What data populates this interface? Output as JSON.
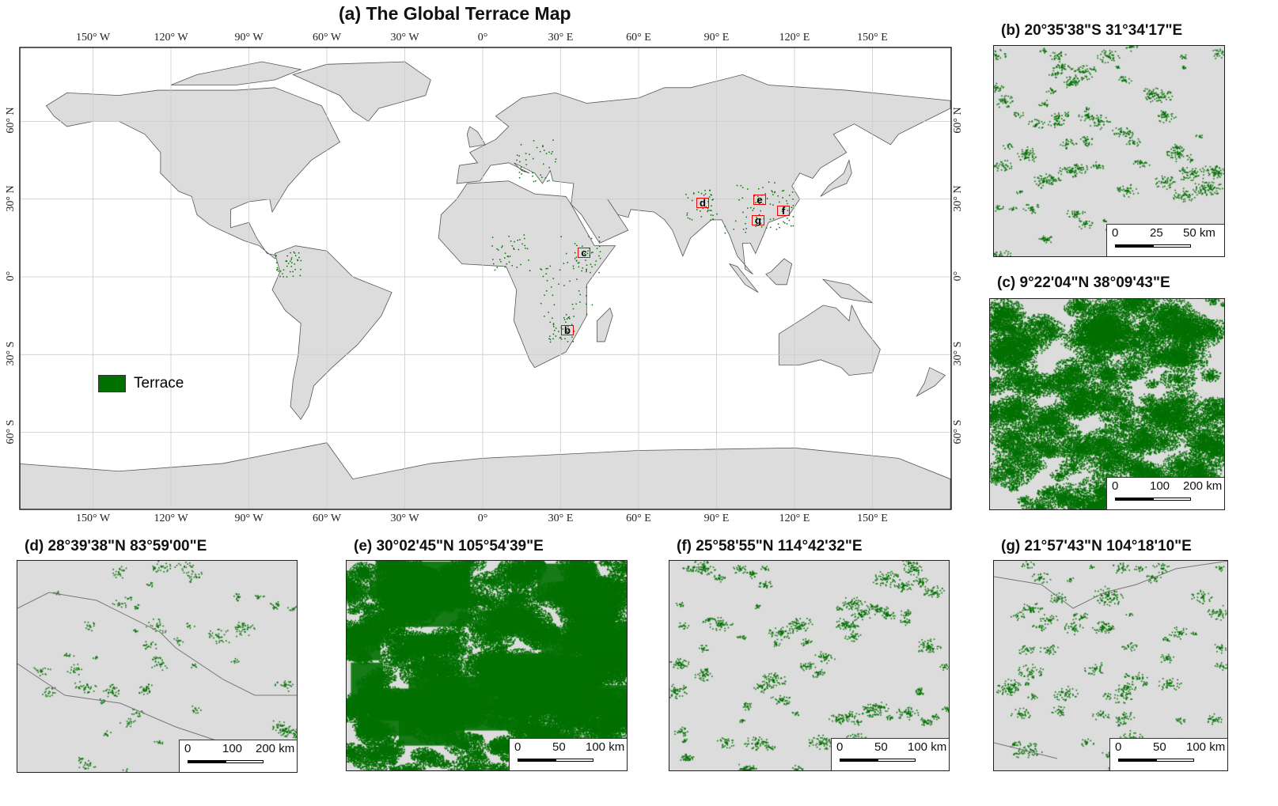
{
  "main": {
    "title": "(a) The Global Terrace Map",
    "lon_labels": [
      "150° W",
      "120° W",
      "90° W",
      "60° W",
      "30° W",
      "0°",
      "30° E",
      "60° E",
      "90° E",
      "120° E",
      "150° E"
    ],
    "lat_labels": [
      "60° N",
      "30° N",
      "0°",
      "30° S",
      "60° S"
    ],
    "legend_label": "Terrace",
    "terrace_color": "#007000",
    "land_color": "#dcdcdc",
    "marker_color": "#e00000",
    "markers": [
      "b",
      "c",
      "d",
      "e",
      "f",
      "g"
    ]
  },
  "insets": [
    {
      "id": "b",
      "title": "(b) 20°35'38\"S 31°34'17\"E",
      "scale": [
        "0",
        "25",
        "50 km"
      ]
    },
    {
      "id": "c",
      "title": "(c) 9°22'04\"N 38°09'43\"E",
      "scale": [
        "0",
        "100",
        "200 km"
      ]
    },
    {
      "id": "d",
      "title": "(d) 28°39'38\"N 83°59'00\"E",
      "scale": [
        "0",
        "100",
        "200 km"
      ]
    },
    {
      "id": "e",
      "title": "(e) 30°02'45\"N 105°54'39\"E",
      "scale": [
        "0",
        "50",
        "100 km"
      ]
    },
    {
      "id": "f",
      "title": "(f) 25°58'55\"N 114°42'32\"E",
      "scale": [
        "0",
        "50",
        "100 km"
      ]
    },
    {
      "id": "g",
      "title": "(g) 21°57'43\"N 104°18'10\"E",
      "scale": [
        "0",
        "50",
        "100 km"
      ]
    }
  ]
}
